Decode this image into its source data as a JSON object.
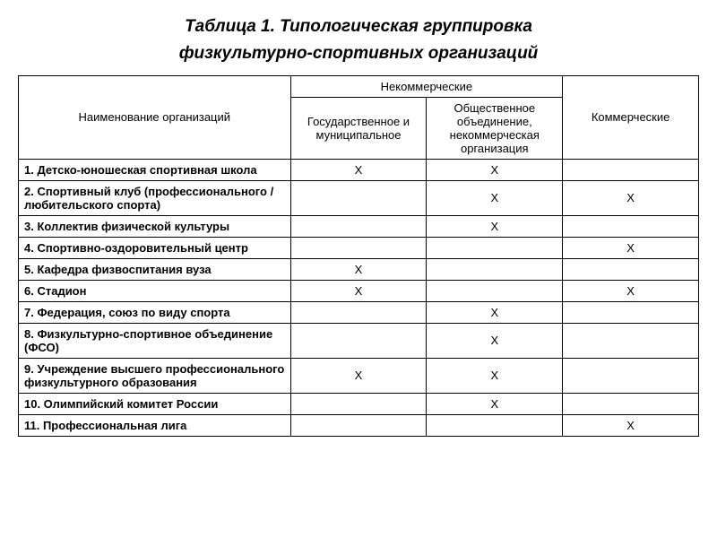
{
  "title_line1": "Таблица 1. Типологическая группировка",
  "title_line2": "физкультурно-спортивных организаций",
  "mark_char": "X",
  "table": {
    "header": {
      "name": "Наименование организаций",
      "noncommercial_group": "Некоммерческие",
      "state_municipal": "Государственное и муниципальное",
      "public_nonprofit": "Общественное объединение, некоммерческая организация",
      "commercial": "Коммерческие"
    },
    "rows": [
      {
        "name": "1. Детско-юношеская спортивная школа",
        "c1": true,
        "c2": true,
        "c3": false
      },
      {
        "name": "2. Спортивный клуб (профессионального /любительского спорта)",
        "c1": false,
        "c2": true,
        "c3": true
      },
      {
        "name": "3. Коллектив физической культуры",
        "c1": false,
        "c2": true,
        "c3": false
      },
      {
        "name": "4. Спортивно-оздоровительный центр",
        "c1": false,
        "c2": false,
        "c3": true
      },
      {
        "name": "5. Кафедра физвоспитания вуза",
        "c1": true,
        "c2": false,
        "c3": false
      },
      {
        "name": "6. Стадион",
        "c1": true,
        "c2": false,
        "c3": true
      },
      {
        "name": "7. Федерация, союз по виду спорта",
        "c1": false,
        "c2": true,
        "c3": false
      },
      {
        "name": "8. Физкультурно-спортивное объединение (ФСО)",
        "c1": false,
        "c2": true,
        "c3": false
      },
      {
        "name": "9. Учреждение высшего профессионального физкультурного образования",
        "c1": true,
        "c2": true,
        "c3": false
      },
      {
        "name": "10. Олимпийский комитет России",
        "c1": false,
        "c2": true,
        "c3": false
      },
      {
        "name": "11. Профессиональная лига",
        "c1": false,
        "c2": false,
        "c3": true
      }
    ]
  }
}
